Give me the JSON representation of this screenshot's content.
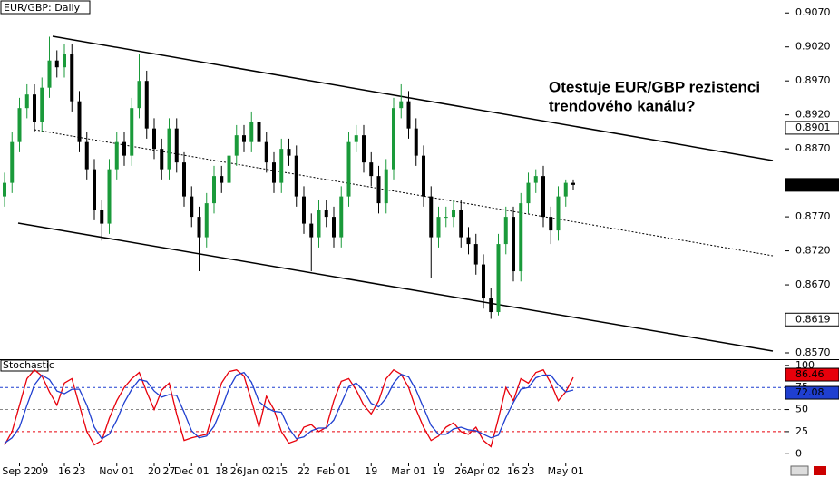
{
  "chart_data": [
    {
      "type": "candlestick",
      "title": "EUR/GBP: Daily",
      "annotation": [
        "Otestuje EUR/GBP rezistenci",
        "trendového kanálu?"
      ],
      "categories": [
        null,
        null,
        "Sep 22",
        null,
        null,
        "09",
        null,
        null,
        "16",
        null,
        "23",
        null,
        null,
        null,
        null,
        "Nov 01",
        null,
        null,
        null,
        null,
        "20",
        null,
        "27",
        null,
        null,
        "Dec 01",
        null,
        null,
        null,
        "18",
        null,
        "26",
        null,
        null,
        "Jan 02",
        null,
        null,
        "15",
        null,
        null,
        "22",
        null,
        null,
        null,
        "Feb 01",
        null,
        null,
        null,
        null,
        "19",
        null,
        null,
        null,
        null,
        "Mar 01",
        null,
        null,
        null,
        "19",
        null,
        null,
        "26",
        null,
        null,
        "Apr 02",
        null,
        null,
        null,
        "16",
        null,
        "23",
        null,
        null,
        null,
        null,
        "May 01",
        null
      ],
      "open": [
        0.88,
        0.882,
        0.888,
        0.893,
        0.895,
        0.891,
        0.896,
        0.9,
        0.899,
        0.901,
        0.894,
        0.888,
        0.884,
        0.878,
        0.876,
        0.884,
        0.888,
        0.886,
        0.893,
        0.897,
        0.89,
        0.887,
        0.884,
        0.89,
        0.885,
        0.88,
        0.877,
        0.874,
        0.879,
        0.883,
        0.882,
        0.886,
        0.889,
        0.888,
        0.891,
        0.888,
        0.885,
        0.882,
        0.887,
        0.886,
        0.88,
        0.876,
        0.874,
        0.878,
        0.877,
        0.874,
        0.88,
        0.888,
        0.889,
        0.885,
        0.883,
        0.879,
        0.884,
        0.893,
        0.894,
        0.89,
        0.886,
        0.88,
        0.874,
        0.877,
        0.877,
        0.878,
        0.874,
        0.873,
        0.87,
        0.865,
        0.863,
        0.873,
        0.877,
        0.869,
        0.879,
        0.882,
        0.883,
        0.877,
        0.875,
        0.88,
        0.882
      ],
      "high": [
        0.8835,
        0.8895,
        0.8945,
        0.8965,
        0.8965,
        0.8975,
        0.9035,
        0.9015,
        0.9025,
        0.9025,
        0.8955,
        0.8895,
        0.8855,
        0.8795,
        0.8855,
        0.8895,
        0.8895,
        0.8945,
        0.901,
        0.8985,
        0.8915,
        0.8885,
        0.8915,
        0.8915,
        0.8865,
        0.8815,
        0.8785,
        0.8805,
        0.8845,
        0.8845,
        0.8875,
        0.8905,
        0.8905,
        0.8925,
        0.8925,
        0.8895,
        0.8865,
        0.8885,
        0.8885,
        0.8875,
        0.8815,
        0.8775,
        0.8795,
        0.8795,
        0.8785,
        0.8815,
        0.8895,
        0.8905,
        0.8905,
        0.8865,
        0.8845,
        0.8855,
        0.8945,
        0.8965,
        0.8955,
        0.8915,
        0.8875,
        0.8815,
        0.8785,
        0.8785,
        0.8795,
        0.8795,
        0.8755,
        0.8745,
        0.8715,
        0.8665,
        0.8745,
        0.8785,
        0.8785,
        0.8805,
        0.8835,
        0.884,
        0.8845,
        0.8785,
        0.8815,
        0.8825,
        0.8825
      ],
      "low": [
        0.8785,
        0.8805,
        0.8865,
        0.8915,
        0.8895,
        0.8895,
        0.8945,
        0.8975,
        0.8975,
        0.8925,
        0.8865,
        0.8825,
        0.8765,
        0.8735,
        0.8745,
        0.8825,
        0.8845,
        0.8845,
        0.8915,
        0.8885,
        0.8855,
        0.8825,
        0.8825,
        0.8835,
        0.8785,
        0.8755,
        0.869,
        0.8725,
        0.8775,
        0.8805,
        0.8805,
        0.8845,
        0.8865,
        0.8865,
        0.8865,
        0.8835,
        0.8805,
        0.8805,
        0.8845,
        0.8785,
        0.8745,
        0.869,
        0.8725,
        0.8755,
        0.8725,
        0.8725,
        0.8785,
        0.8865,
        0.8835,
        0.8815,
        0.8775,
        0.8775,
        0.8825,
        0.8915,
        0.8885,
        0.8845,
        0.8785,
        0.868,
        0.8725,
        0.8755,
        0.8755,
        0.8725,
        0.8715,
        0.8685,
        0.8635,
        0.862,
        0.8625,
        0.8715,
        0.8675,
        0.8675,
        0.8775,
        0.8805,
        0.8755,
        0.873,
        0.8735,
        0.8785,
        0.881
      ],
      "close": [
        0.882,
        0.888,
        0.893,
        0.895,
        0.891,
        0.896,
        0.9,
        0.899,
        0.901,
        0.894,
        0.888,
        0.884,
        0.878,
        0.876,
        0.884,
        0.888,
        0.886,
        0.893,
        0.897,
        0.89,
        0.887,
        0.884,
        0.89,
        0.885,
        0.88,
        0.877,
        0.874,
        0.879,
        0.883,
        0.882,
        0.886,
        0.889,
        0.888,
        0.891,
        0.888,
        0.885,
        0.882,
        0.887,
        0.886,
        0.88,
        0.876,
        0.874,
        0.878,
        0.877,
        0.874,
        0.88,
        0.888,
        0.889,
        0.885,
        0.883,
        0.879,
        0.884,
        0.893,
        0.894,
        0.89,
        0.886,
        0.88,
        0.874,
        0.877,
        0.877,
        0.878,
        0.874,
        0.873,
        0.87,
        0.865,
        0.863,
        0.873,
        0.877,
        0.869,
        0.879,
        0.882,
        0.883,
        0.877,
        0.875,
        0.88,
        0.882,
        0.8817
      ],
      "up_color": "#1a9a3a",
      "down_color": "#000000",
      "ylim": [
        0.8562,
        0.9089
      ],
      "yticks": [
        {
          "value": 0.907,
          "label": "0.9070"
        },
        {
          "value": 0.902,
          "label": "0.9020"
        },
        {
          "value": 0.897,
          "label": "0.8970"
        },
        {
          "value": 0.892,
          "label": "0.8920"
        },
        {
          "value": 0.887,
          "label": "0.8870"
        },
        {
          "value": 0.877,
          "label": "0.8770"
        },
        {
          "value": 0.872,
          "label": "0.8720"
        },
        {
          "value": 0.867,
          "label": "0.8670"
        },
        {
          "value": 0.857,
          "label": "0.8570"
        }
      ],
      "price_markers": [
        0.8901,
        0.8619
      ]
    },
    {
      "type": "line",
      "title": "Stochastic",
      "series": [
        {
          "color": "#e8000b",
          "values": [
            10,
            25,
            55,
            85,
            95,
            88,
            70,
            55,
            80,
            85,
            55,
            25,
            10,
            15,
            40,
            60,
            75,
            85,
            92,
            70,
            50,
            72,
            80,
            45,
            15,
            18,
            20,
            22,
            50,
            80,
            93,
            95,
            88,
            60,
            30,
            65,
            50,
            25,
            12,
            15,
            30,
            33,
            25,
            30,
            60,
            82,
            85,
            72,
            55,
            45,
            60,
            85,
            95,
            90,
            75,
            50,
            30,
            15,
            20,
            30,
            35,
            25,
            22,
            30,
            15,
            8,
            40,
            75,
            60,
            85,
            80,
            92,
            95,
            80,
            60,
            70,
            86.46
          ]
        },
        {
          "color": "#1f3fd0",
          "values": [
            12,
            18,
            30,
            55,
            78,
            89,
            84,
            71,
            68,
            73,
            73,
            55,
            30,
            17,
            22,
            38,
            58,
            73,
            84,
            82,
            71,
            64,
            67,
            66,
            47,
            26,
            18,
            20,
            31,
            51,
            74,
            89,
            92,
            81,
            59,
            52,
            48,
            47,
            29,
            17,
            19,
            26,
            29,
            29,
            38,
            57,
            76,
            80,
            71,
            57,
            53,
            63,
            80,
            90,
            87,
            72,
            52,
            32,
            22,
            22,
            28,
            30,
            27,
            26,
            22,
            18,
            21,
            41,
            58,
            73,
            75,
            86,
            89,
            89,
            78,
            70,
            72.08
          ]
        }
      ],
      "ylim": [
        -10,
        106
      ],
      "yticks": [
        100,
        75,
        50,
        25,
        0
      ],
      "levels": [
        {
          "value": 75,
          "color": "#1f3fd0"
        },
        {
          "value": 50,
          "color": "#888888"
        },
        {
          "value": 25,
          "color": "#e8000b"
        }
      ]
    }
  ]
}
